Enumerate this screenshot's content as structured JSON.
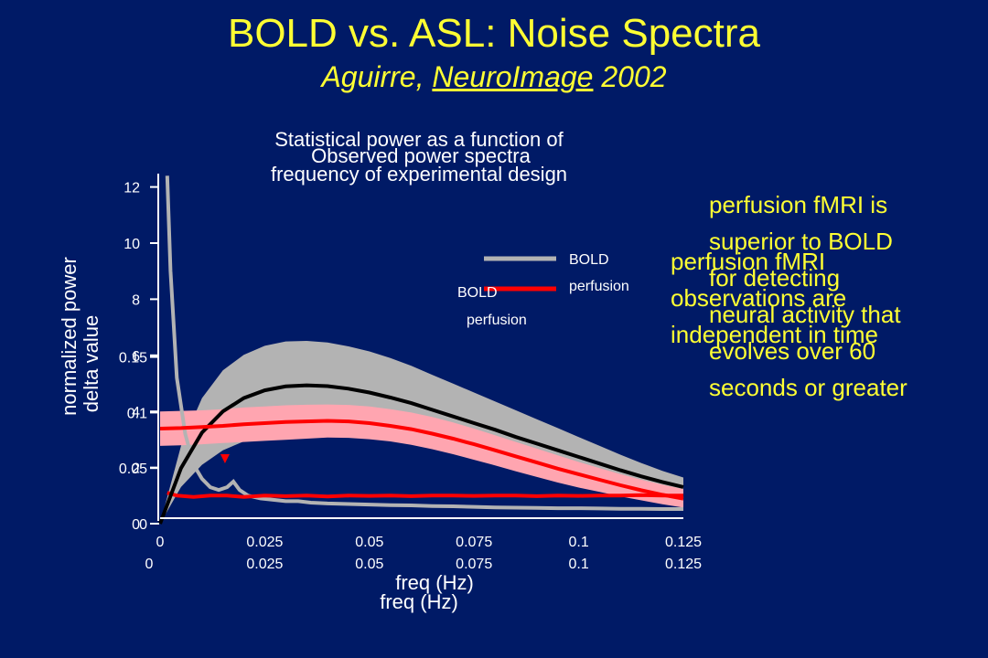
{
  "header": {
    "title": "BOLD vs. ASL: Noise Spectra",
    "subtitle_author": "Aguirre,",
    "subtitle_journal": "NeuroImage",
    "subtitle_year": "2002"
  },
  "colors": {
    "background": "#001a66",
    "title": "#ffff33",
    "bold": "#b3b3b3",
    "perfusion": "#ff0000",
    "bold_band": "#b3b3b3",
    "perfusion_band": "#ffa5b0"
  },
  "overlay_texts": {
    "right_text_1": [
      "perfusion fMRI is",
      "superior to BOLD",
      "for detecting",
      "neural activity that",
      "evolves over 60",
      "seconds or greater"
    ],
    "right_text_2": [
      "perfusion fMRI",
      "observations are",
      "independent in time"
    ]
  },
  "chart_data": [
    {
      "type": "line",
      "title": [
        "Statistical power as a function of",
        "frequency of experimental design"
      ],
      "xlabel": "freq (Hz)",
      "ylabel": "delta value",
      "xlim": [
        0,
        0.125
      ],
      "ylim": [
        0,
        0.17
      ],
      "xticks": [
        "0",
        "0.025",
        "0.05",
        "0.075",
        "0.1",
        "0.125"
      ],
      "yticks": [
        "0",
        "0.05",
        "0.1",
        "0.15"
      ],
      "legend": [
        "BOLD",
        "perfusion"
      ],
      "legend_position": "top-right",
      "series": [
        {
          "name": "BOLD",
          "x": [
            0,
            0.005,
            0.01,
            0.015,
            0.02,
            0.025,
            0.03,
            0.035,
            0.04,
            0.045,
            0.05,
            0.055,
            0.06,
            0.065,
            0.07,
            0.075,
            0.08,
            0.085,
            0.09,
            0.095,
            0.1,
            0.105,
            0.11,
            0.115,
            0.12,
            0.125
          ],
          "y": [
            0,
            0.05,
            0.082,
            0.101,
            0.113,
            0.12,
            0.1235,
            0.1245,
            0.1238,
            0.1215,
            0.118,
            0.1135,
            0.1085,
            0.1025,
            0.0965,
            0.0905,
            0.0845,
            0.078,
            0.072,
            0.066,
            0.06,
            0.054,
            0.048,
            0.0425,
            0.0375,
            0.033
          ],
          "band_upper": [
            0,
            0.07,
            0.113,
            0.138,
            0.152,
            0.16,
            0.164,
            0.1645,
            0.163,
            0.1595,
            0.155,
            0.149,
            0.142,
            0.134,
            0.126,
            0.118,
            0.11,
            0.102,
            0.094,
            0.086,
            0.078,
            0.07,
            0.062,
            0.0545,
            0.0475,
            0.0415
          ],
          "band_lower": [
            0,
            0.033,
            0.053,
            0.066,
            0.074,
            0.079,
            0.082,
            0.0835,
            0.0835,
            0.0825,
            0.081,
            0.0785,
            0.0755,
            0.072,
            0.068,
            0.0635,
            0.0595,
            0.055,
            0.051,
            0.047,
            0.043,
            0.039,
            0.035,
            0.031,
            0.0275,
            0.0245
          ]
        },
        {
          "name": "perfusion",
          "x": [
            0,
            0.005,
            0.01,
            0.015,
            0.02,
            0.025,
            0.03,
            0.035,
            0.04,
            0.045,
            0.05,
            0.055,
            0.06,
            0.065,
            0.07,
            0.075,
            0.08,
            0.085,
            0.09,
            0.095,
            0.1,
            0.105,
            0.11,
            0.115,
            0.12,
            0.125
          ],
          "y": [
            0.0855,
            0.086,
            0.087,
            0.088,
            0.0895,
            0.0905,
            0.0915,
            0.092,
            0.0925,
            0.092,
            0.0905,
            0.088,
            0.085,
            0.081,
            0.0765,
            0.0715,
            0.066,
            0.0605,
            0.055,
            0.0495,
            0.0445,
            0.0395,
            0.0345,
            0.03,
            0.026,
            0.0225
          ],
          "band_upper": [
            0.101,
            0.1015,
            0.102,
            0.103,
            0.1045,
            0.1055,
            0.1065,
            0.107,
            0.1072,
            0.1068,
            0.1055,
            0.103,
            0.1,
            0.096,
            0.091,
            0.0855,
            0.0795,
            0.0735,
            0.0675,
            0.0615,
            0.0555,
            0.05,
            0.0445,
            0.0395,
            0.035,
            0.031
          ],
          "band_lower": [
            0.07,
            0.0705,
            0.0715,
            0.0725,
            0.0735,
            0.0745,
            0.0755,
            0.0765,
            0.0775,
            0.0772,
            0.076,
            0.074,
            0.071,
            0.067,
            0.0625,
            0.0575,
            0.0525,
            0.047,
            0.042,
            0.037,
            0.0325,
            0.0285,
            0.0245,
            0.021,
            0.0175,
            0.0145
          ]
        }
      ]
    },
    {
      "type": "line",
      "title": "Observed power spectra",
      "xlabel": "freq (Hz)",
      "ylabel": "normalized power",
      "xlim": [
        0,
        0.125
      ],
      "ylim": [
        0,
        13
      ],
      "xticks": [
        "0",
        "0.025",
        "0.05",
        "0.075",
        "0.1",
        "0.125"
      ],
      "yticks": [
        "0",
        "2",
        "4",
        "6",
        "8",
        "10",
        "12"
      ],
      "legend": [
        "BOLD",
        "perfusion"
      ],
      "legend_position": "top-right",
      "series": [
        {
          "name": "BOLD",
          "x": [
            0.0017,
            0.0025,
            0.004,
            0.006,
            0.008,
            0.01,
            0.012,
            0.014,
            0.016,
            0.0175,
            0.019,
            0.021,
            0.024,
            0.027,
            0.03,
            0.033,
            0.036,
            0.04,
            0.045,
            0.05,
            0.055,
            0.06,
            0.065,
            0.07,
            0.075,
            0.08,
            0.085,
            0.09,
            0.095,
            0.1,
            0.105,
            0.11,
            0.115,
            0.12,
            0.125
          ],
          "y": [
            12.4,
            9.0,
            5.2,
            3.2,
            2.1,
            1.6,
            1.3,
            1.2,
            1.3,
            1.5,
            1.2,
            1.0,
            0.9,
            0.85,
            0.8,
            0.8,
            0.75,
            0.72,
            0.7,
            0.68,
            0.66,
            0.65,
            0.63,
            0.62,
            0.6,
            0.58,
            0.57,
            0.56,
            0.55,
            0.55,
            0.54,
            0.53,
            0.53,
            0.52,
            0.52
          ]
        },
        {
          "name": "perfusion",
          "x": [
            0.0017,
            0.004,
            0.008,
            0.012,
            0.016,
            0.02,
            0.025,
            0.03,
            0.035,
            0.04,
            0.045,
            0.05,
            0.055,
            0.06,
            0.065,
            0.07,
            0.075,
            0.08,
            0.085,
            0.09,
            0.095,
            0.1,
            0.105,
            0.11,
            0.115,
            0.12,
            0.125
          ],
          "y": [
            1.1,
            1.0,
            0.95,
            1.0,
            1.0,
            0.95,
            1.0,
            0.98,
            1.0,
            0.97,
            1.0,
            0.99,
            1.0,
            0.98,
            1.0,
            1.0,
            0.99,
            1.0,
            1.0,
            0.98,
            1.0,
            0.99,
            1.0,
            1.0,
            1.02,
            1.0,
            1.0
          ]
        }
      ],
      "annotations": [
        "peak marker above BOLD spectrum near 0.0155 Hz"
      ]
    }
  ]
}
